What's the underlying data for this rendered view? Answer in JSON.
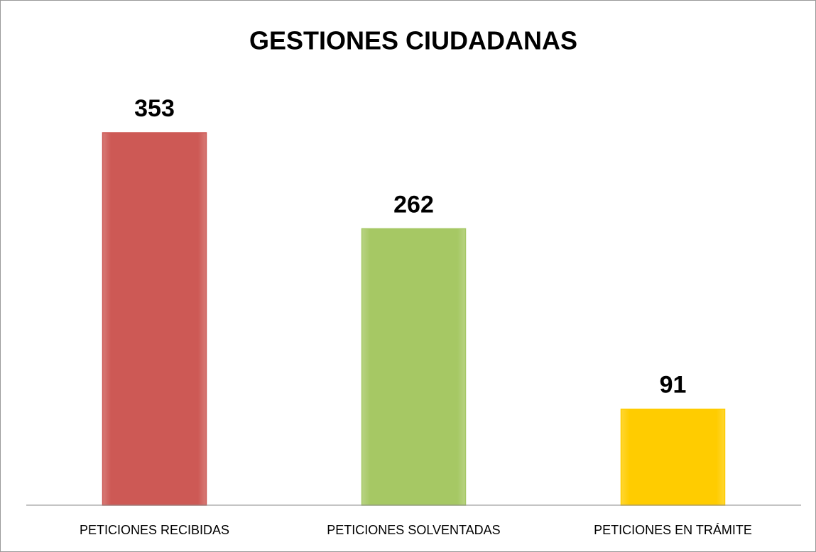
{
  "chart_data": {
    "type": "bar",
    "title": "GESTIONES CIUDADANAS",
    "categories": [
      "PETICIONES RECIBIDAS",
      "PETICIONES SOLVENTADAS",
      "PETICIONES EN TRÁMITE"
    ],
    "values": [
      353,
      262,
      91
    ],
    "colors": [
      "#cd5955",
      "#a6c864",
      "#ffcc00"
    ]
  }
}
